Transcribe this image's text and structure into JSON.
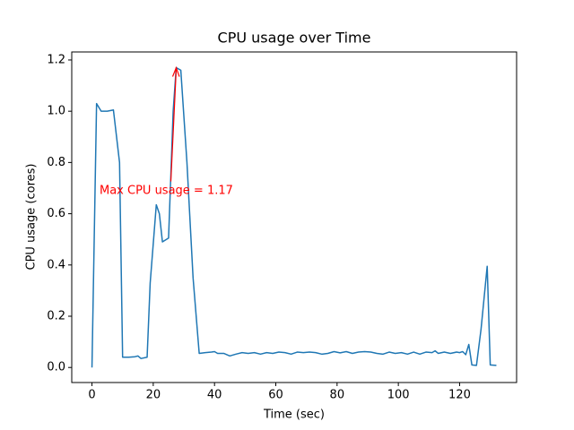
{
  "chart_data": {
    "type": "line",
    "title": "CPU usage over Time",
    "xlabel": "Time (sec)",
    "ylabel": "CPU usage (cores)",
    "annotation": "Max CPU usage = 1.17",
    "annotation_color": "#ff0000",
    "series": [
      {
        "color": "#1f77b4",
        "x": [
          0,
          1.5,
          3,
          5,
          7,
          9,
          10,
          12,
          14,
          15,
          16,
          18,
          19,
          21,
          22,
          23,
          25,
          26.5,
          27.5,
          29,
          31,
          33,
          35,
          37,
          39,
          40,
          41,
          43,
          45,
          47,
          49,
          51,
          53,
          55,
          57,
          59,
          61,
          63,
          65,
          67,
          69,
          71,
          73,
          75,
          77,
          79,
          81,
          83,
          85,
          87,
          89,
          91,
          93,
          95,
          97,
          99,
          101,
          103,
          105,
          107,
          109,
          111,
          112,
          113,
          115,
          117,
          119,
          120,
          121,
          122,
          123,
          124,
          125.5,
          127,
          129,
          130,
          132
        ],
        "values": [
          0.0,
          1.03,
          1.0,
          1.0,
          1.005,
          0.8,
          0.04,
          0.04,
          0.042,
          0.045,
          0.035,
          0.04,
          0.33,
          0.635,
          0.6,
          0.49,
          0.505,
          1.0,
          1.17,
          1.16,
          0.8,
          0.35,
          0.055,
          0.058,
          0.06,
          0.062,
          0.055,
          0.055,
          0.045,
          0.052,
          0.058,
          0.055,
          0.058,
          0.052,
          0.058,
          0.055,
          0.06,
          0.058,
          0.052,
          0.06,
          0.058,
          0.06,
          0.058,
          0.052,
          0.055,
          0.062,
          0.057,
          0.062,
          0.055,
          0.06,
          0.062,
          0.06,
          0.055,
          0.052,
          0.06,
          0.055,
          0.058,
          0.052,
          0.06,
          0.052,
          0.06,
          0.058,
          0.065,
          0.055,
          0.06,
          0.055,
          0.06,
          0.058,
          0.062,
          0.05,
          0.09,
          0.01,
          0.008,
          0.15,
          0.395,
          0.01,
          0.008
        ]
      }
    ],
    "xlim": [
      -6.6,
      138.6
    ],
    "xticks": [
      0,
      20,
      40,
      60,
      80,
      100,
      120
    ],
    "ylim": [
      -0.0587,
      1.2313
    ],
    "yticks": [
      {
        "value": 0,
        "label": "0.0"
      },
      0.2,
      0.4,
      0.6,
      0.8,
      {
        "value": 1,
        "label": "1.0"
      },
      1.2
    ]
  }
}
